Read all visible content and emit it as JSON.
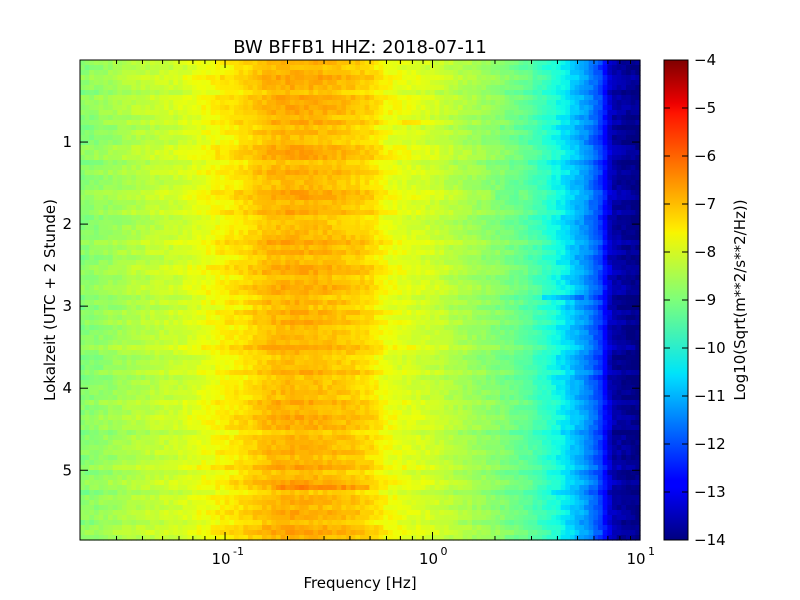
{
  "chart_data": {
    "type": "heatmap",
    "title": "BW BFFB1 HHZ: 2018-07-11",
    "xlabel": "Frequency [Hz]",
    "ylabel": "Lokalzeit (UTC + 2 Stunde)",
    "x_scale": "log",
    "xlim": [
      0.02,
      10
    ],
    "ylim": [
      0,
      5.85
    ],
    "y_inverted": true,
    "x_ticks": [
      {
        "base": "10",
        "exp": "-1",
        "value": 0.1
      },
      {
        "base": "10",
        "exp": "0",
        "value": 1
      },
      {
        "base": "10",
        "exp": "1",
        "value": 10
      }
    ],
    "y_ticks": [
      1,
      2,
      3,
      4,
      5
    ],
    "colorbar": {
      "label": "Log10(Sqrt(m**2/s**2/Hz))",
      "range": [
        -14,
        -4
      ],
      "ticks": [
        -4,
        -5,
        -6,
        -7,
        -8,
        -9,
        -10,
        -11,
        -12,
        -13,
        -14
      ],
      "colormap": "jet"
    },
    "spectrum_profile": {
      "frequency_hz": [
        0.02,
        0.038,
        0.06,
        0.085,
        0.13,
        0.16,
        0.2,
        0.25,
        0.32,
        0.4,
        0.5,
        0.6,
        0.75,
        1.0,
        1.4,
        2.0,
        2.8,
        3.5,
        4.5,
        5.5,
        6.5,
        7.3,
        10.0
      ],
      "log10_amplitude": [
        -8.9,
        -8.3,
        -8.0,
        -7.6,
        -7.2,
        -6.9,
        -6.8,
        -6.8,
        -6.9,
        -7.0,
        -7.2,
        -7.6,
        -7.8,
        -8.0,
        -8.4,
        -8.8,
        -9.3,
        -9.9,
        -10.6,
        -11.3,
        -12.2,
        -13.6,
        -14.0
      ]
    },
    "events": [
      {
        "time_h": 0.77,
        "freq_range_hz": [
          0.7,
          1.0
        ],
        "delta": 0.35
      },
      {
        "time_h": 5.22,
        "freq_range_hz": [
          0.18,
          0.5
        ],
        "delta": 0.45
      },
      {
        "time_h": 1.65,
        "freq_range_hz": [
          2.0,
          2.6
        ],
        "delta": -0.4
      },
      {
        "time_h": 2.9,
        "freq_range_hz": [
          3.4,
          5.5
        ],
        "delta": -0.5
      }
    ]
  }
}
